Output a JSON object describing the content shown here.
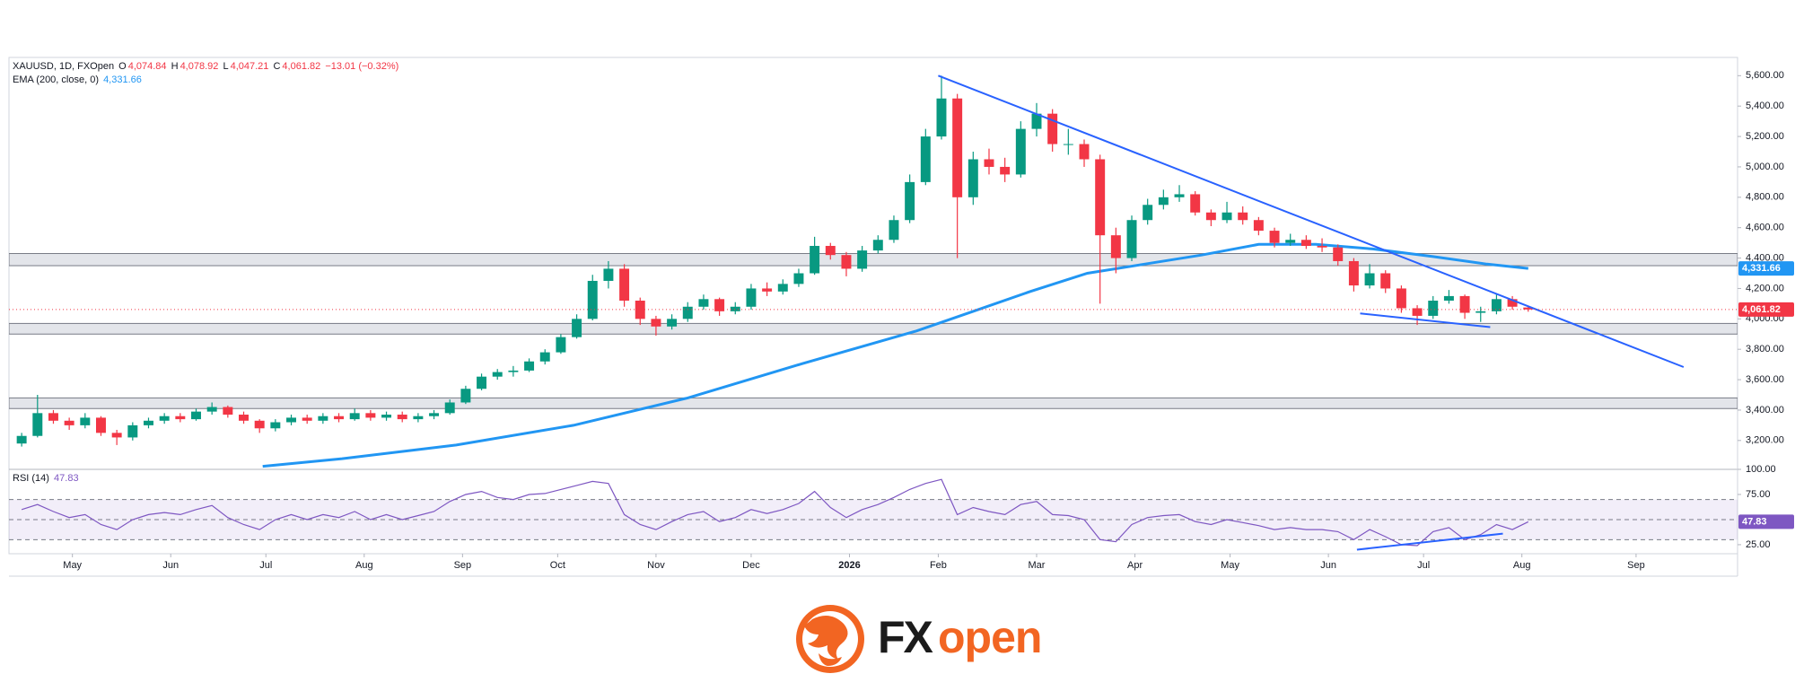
{
  "chart_data": [
    {
      "type": "candlestick",
      "title": "XAUUSD, 1D, FXOpen",
      "ohlc_keys": [
        "O",
        "H",
        "L",
        "C"
      ],
      "ohlc_labels": [
        "4,074.84",
        "4,078.92",
        "4,047.21",
        "4,061.82"
      ],
      "change_label": "−13.01 (−0.32%)",
      "up_color": "#089981",
      "down_color": "#f23645",
      "xlim": [
        0,
        545
      ],
      "xticks": [
        {
          "value": 20,
          "label": "May"
        },
        {
          "value": 51,
          "label": "Jun"
        },
        {
          "value": 81,
          "label": "Jul"
        },
        {
          "value": 112,
          "label": "Aug"
        },
        {
          "value": 143,
          "label": "Sep"
        },
        {
          "value": 173,
          "label": "Oct"
        },
        {
          "value": 204,
          "label": "Nov"
        },
        {
          "value": 234,
          "label": "Dec"
        },
        {
          "value": 265,
          "label": "2026"
        },
        {
          "value": 293,
          "label": "Feb"
        },
        {
          "value": 324,
          "label": "Mar"
        },
        {
          "value": 355,
          "label": "Apr"
        },
        {
          "value": 385,
          "label": "May"
        },
        {
          "value": 416,
          "label": "Jun"
        },
        {
          "value": 446,
          "label": "Jul"
        },
        {
          "value": 477,
          "label": "Aug"
        },
        {
          "value": 513,
          "label": "Sep"
        }
      ],
      "ylim": [
        3010,
        5720
      ],
      "yticks": [
        {
          "value": 3200,
          "label": "3,200.00"
        },
        {
          "value": 3400,
          "label": "3,400.00"
        },
        {
          "value": 3600,
          "label": "3,600.00"
        },
        {
          "value": 3800,
          "label": "3,800.00"
        },
        {
          "value": 4000,
          "label": "4,000.00"
        },
        {
          "value": 4200,
          "label": "4,200.00"
        },
        {
          "value": 4400,
          "label": "4,400.00"
        },
        {
          "value": 4600,
          "label": "4,600.00"
        },
        {
          "value": 4800,
          "label": "4,800.00"
        },
        {
          "value": 5000,
          "label": "5,000.00"
        },
        {
          "value": 5200,
          "label": "5,200.00"
        },
        {
          "value": 5400,
          "label": "5,400.00"
        },
        {
          "value": 5600,
          "label": "5,600.00"
        }
      ],
      "x": [
        4,
        9,
        14,
        19,
        24,
        29,
        34,
        39,
        44,
        49,
        54,
        59,
        64,
        69,
        74,
        79,
        84,
        89,
        94,
        99,
        104,
        109,
        114,
        119,
        124,
        129,
        134,
        139,
        144,
        149,
        154,
        159,
        164,
        169,
        174,
        179,
        184,
        189,
        194,
        199,
        204,
        209,
        214,
        219,
        224,
        229,
        234,
        239,
        244,
        249,
        254,
        259,
        264,
        269,
        274,
        279,
        284,
        289,
        294,
        299,
        304,
        309,
        314,
        319,
        324,
        329,
        334,
        339,
        344,
        349,
        354,
        359,
        364,
        369,
        374,
        379,
        384,
        389,
        394,
        399,
        404,
        409,
        414,
        419,
        424,
        429,
        434,
        439,
        444,
        449,
        454,
        459,
        464,
        469,
        474,
        479
      ],
      "candles": [
        [
          3180,
          3250,
          3160,
          3230
        ],
        [
          3230,
          3500,
          3220,
          3380
        ],
        [
          3380,
          3400,
          3310,
          3330
        ],
        [
          3330,
          3350,
          3270,
          3300
        ],
        [
          3300,
          3380,
          3280,
          3350
        ],
        [
          3350,
          3360,
          3230,
          3250
        ],
        [
          3250,
          3270,
          3170,
          3220
        ],
        [
          3220,
          3320,
          3200,
          3300
        ],
        [
          3300,
          3350,
          3280,
          3330
        ],
        [
          3330,
          3380,
          3310,
          3360
        ],
        [
          3360,
          3380,
          3320,
          3340
        ],
        [
          3340,
          3410,
          3330,
          3390
        ],
        [
          3390,
          3450,
          3370,
          3420
        ],
        [
          3420,
          3430,
          3350,
          3370
        ],
        [
          3370,
          3390,
          3310,
          3330
        ],
        [
          3330,
          3340,
          3250,
          3280
        ],
        [
          3280,
          3340,
          3260,
          3320
        ],
        [
          3320,
          3370,
          3300,
          3350
        ],
        [
          3350,
          3370,
          3310,
          3330
        ],
        [
          3330,
          3380,
          3310,
          3360
        ],
        [
          3360,
          3380,
          3320,
          3340
        ],
        [
          3340,
          3410,
          3330,
          3380
        ],
        [
          3380,
          3400,
          3330,
          3350
        ],
        [
          3350,
          3390,
          3330,
          3370
        ],
        [
          3370,
          3390,
          3320,
          3340
        ],
        [
          3340,
          3380,
          3320,
          3360
        ],
        [
          3360,
          3400,
          3340,
          3380
        ],
        [
          3380,
          3470,
          3370,
          3450
        ],
        [
          3450,
          3560,
          3440,
          3540
        ],
        [
          3540,
          3640,
          3530,
          3620
        ],
        [
          3620,
          3670,
          3600,
          3650
        ],
        [
          3650,
          3690,
          3620,
          3660
        ],
        [
          3660,
          3740,
          3650,
          3720
        ],
        [
          3720,
          3800,
          3700,
          3780
        ],
        [
          3780,
          3900,
          3770,
          3880
        ],
        [
          3880,
          4030,
          3870,
          4000
        ],
        [
          4000,
          4290,
          3990,
          4250
        ],
        [
          4250,
          4380,
          4200,
          4330
        ],
        [
          4330,
          4360,
          4080,
          4120
        ],
        [
          4120,
          4140,
          3960,
          4000
        ],
        [
          4000,
          4020,
          3890,
          3950
        ],
        [
          3950,
          4030,
          3930,
          4000
        ],
        [
          4000,
          4110,
          3980,
          4080
        ],
        [
          4080,
          4160,
          4060,
          4130
        ],
        [
          4130,
          4140,
          4020,
          4050
        ],
        [
          4050,
          4110,
          4030,
          4080
        ],
        [
          4080,
          4230,
          4060,
          4200
        ],
        [
          4200,
          4240,
          4150,
          4180
        ],
        [
          4180,
          4260,
          4160,
          4230
        ],
        [
          4230,
          4330,
          4210,
          4300
        ],
        [
          4300,
          4540,
          4290,
          4480
        ],
        [
          4480,
          4500,
          4390,
          4420
        ],
        [
          4420,
          4440,
          4280,
          4330
        ],
        [
          4330,
          4480,
          4310,
          4450
        ],
        [
          4450,
          4550,
          4430,
          4520
        ],
        [
          4520,
          4680,
          4500,
          4650
        ],
        [
          4650,
          4950,
          4630,
          4900
        ],
        [
          4900,
          5250,
          4880,
          5200
        ],
        [
          5200,
          5600,
          5180,
          5450
        ],
        [
          5450,
          5480,
          4400,
          4800
        ],
        [
          4800,
          5100,
          4750,
          5050
        ],
        [
          5050,
          5120,
          4950,
          5000
        ],
        [
          5000,
          5060,
          4900,
          4950
        ],
        [
          4950,
          5300,
          4930,
          5250
        ],
        [
          5250,
          5420,
          5200,
          5350
        ],
        [
          5350,
          5380,
          5100,
          5150
        ],
        [
          5150,
          5250,
          5080,
          5150
        ],
        [
          5150,
          5180,
          5000,
          5050
        ],
        [
          5050,
          5080,
          4100,
          4550
        ],
        [
          4550,
          4600,
          4300,
          4400
        ],
        [
          4400,
          4680,
          4380,
          4650
        ],
        [
          4650,
          4790,
          4620,
          4750
        ],
        [
          4750,
          4850,
          4720,
          4800
        ],
        [
          4800,
          4880,
          4770,
          4820
        ],
        [
          4820,
          4840,
          4680,
          4700
        ],
        [
          4700,
          4720,
          4610,
          4650
        ],
        [
          4650,
          4770,
          4630,
          4700
        ],
        [
          4700,
          4740,
          4620,
          4650
        ],
        [
          4650,
          4670,
          4550,
          4580
        ],
        [
          4580,
          4600,
          4470,
          4500
        ],
        [
          4500,
          4560,
          4480,
          4520
        ],
        [
          4520,
          4550,
          4460,
          4480
        ],
        [
          4480,
          4530,
          4440,
          4470
        ],
        [
          4470,
          4490,
          4350,
          4380
        ],
        [
          4380,
          4400,
          4180,
          4220
        ],
        [
          4220,
          4360,
          4200,
          4300
        ],
        [
          4300,
          4320,
          4170,
          4200
        ],
        [
          4200,
          4220,
          4040,
          4070
        ],
        [
          4070,
          4090,
          3960,
          4020
        ],
        [
          4020,
          4150,
          4000,
          4120
        ],
        [
          4120,
          4190,
          4100,
          4150
        ],
        [
          4150,
          4160,
          4000,
          4040
        ],
        [
          4040,
          4080,
          3980,
          4050
        ],
        [
          4050,
          4160,
          4030,
          4130
        ],
        [
          4130,
          4150,
          4060,
          4080
        ],
        [
          4074.84,
          4078.92,
          4047.21,
          4061.82
        ]
      ],
      "series": [
        {
          "name": "EMA (200, close, 0)",
          "value_label": "4,331.66",
          "color": "#2196f3",
          "x": [
            80,
            105,
            141,
            178,
            214,
            250,
            286,
            304,
            322,
            340,
            358,
            376,
            394,
            412,
            430,
            449,
            466,
            479
          ],
          "values": [
            3030,
            3080,
            3170,
            3300,
            3480,
            3705,
            3920,
            4050,
            4180,
            4300,
            4360,
            4420,
            4490,
            4490,
            4460,
            4410,
            4360,
            4331.66
          ]
        }
      ],
      "zones": [
        [
          4350,
          4430
        ],
        [
          3900,
          3970
        ],
        [
          3410,
          3480
        ]
      ],
      "zone_color": "#d1d4dc",
      "trendlines": [
        {
          "x": [
            293,
            528
          ],
          "y": [
            5600,
            3683
          ],
          "color": "#2962ff"
        },
        {
          "x": [
            426,
            467
          ],
          "y": [
            4036,
            3946
          ],
          "color": "#2962ff"
        }
      ]
    },
    {
      "type": "line",
      "title": "RSI (14)",
      "value_label": "47.83",
      "color": "#7e57c2",
      "ylim": [
        16,
        100
      ],
      "yticks": [
        {
          "value": 25,
          "label": "25.00"
        },
        {
          "value": 75,
          "label": "75.00"
        },
        {
          "value": 100,
          "label": "100.00"
        }
      ],
      "band": [
        30,
        70
      ],
      "levels": [
        30,
        50,
        70
      ],
      "values": [
        60,
        65,
        58,
        52,
        55,
        45,
        40,
        50,
        55,
        57,
        55,
        60,
        64,
        52,
        45,
        40,
        50,
        55,
        50,
        55,
        52,
        58,
        50,
        55,
        50,
        54,
        58,
        68,
        75,
        78,
        72,
        70,
        75,
        76,
        80,
        84,
        88,
        86,
        55,
        45,
        40,
        48,
        55,
        58,
        48,
        52,
        60,
        56,
        60,
        66,
        78,
        62,
        52,
        60,
        65,
        72,
        80,
        86,
        90,
        55,
        62,
        58,
        55,
        65,
        68,
        55,
        54,
        50,
        30,
        28,
        45,
        52,
        54,
        55,
        48,
        45,
        50,
        47,
        44,
        40,
        42,
        40,
        40,
        38,
        30,
        40,
        33,
        25,
        24,
        38,
        42,
        30,
        35,
        45,
        40,
        47.83
      ],
      "trendlines": [
        {
          "x": [
            425,
            471
          ],
          "y": [
            20,
            36
          ],
          "color": "#2962ff"
        }
      ]
    }
  ],
  "logo": {
    "fx": "FX",
    "open": "open"
  }
}
